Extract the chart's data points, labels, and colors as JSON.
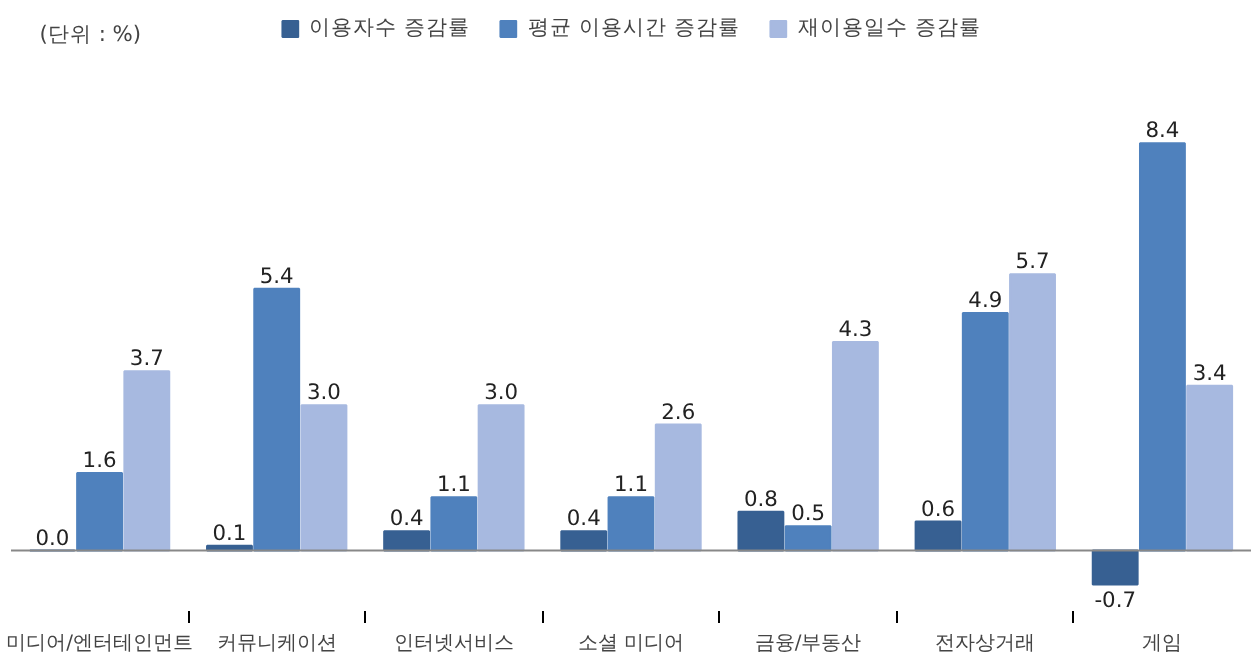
{
  "chart_data": {
    "type": "bar",
    "categories": [
      "미디어/엔터테인먼트",
      "커뮤니케이션",
      "인터넷서비스",
      "소셜 미디어",
      "금융/부동산",
      "전자상거래",
      "게임"
    ],
    "series": [
      {
        "name": "이용자수 증감률",
        "color": "#376092",
        "values": [
          0.0,
          0.1,
          0.4,
          0.4,
          0.8,
          0.6,
          -0.7
        ],
        "value_labels": [
          "0.0",
          "0.1",
          "0.4",
          "0.4",
          "0.8",
          "0.6",
          "-0.7"
        ]
      },
      {
        "name": "평균 이용시간 증감률",
        "color": "#4f81bd",
        "values": [
          1.6,
          5.4,
          1.1,
          1.1,
          0.5,
          4.9,
          8.4
        ],
        "value_labels": [
          "1.6",
          "5.4",
          "1.1",
          "1.1",
          "0.5",
          "4.9",
          "8.4"
        ]
      },
      {
        "name": "재이용일수 증감률",
        "color": "#a7b9e0",
        "values": [
          3.7,
          3.0,
          3.0,
          2.6,
          4.3,
          5.7,
          3.4
        ],
        "value_labels": [
          "3.7",
          "3.0",
          "3.0",
          "2.6",
          "4.3",
          "5.7",
          "3.4"
        ]
      }
    ],
    "legend": "top",
    "grid": false,
    "annotations": [
      "(단위 : %)"
    ]
  }
}
